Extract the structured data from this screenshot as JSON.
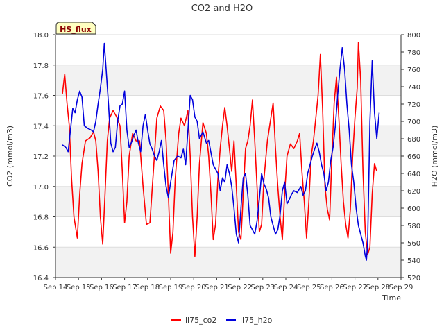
{
  "chart_data": {
    "type": "line",
    "title": "CO2 and H2O",
    "badge": "HS_flux",
    "xlabel": "Time",
    "ylabel_left": "CO2 (mmol/m3)",
    "ylabel_right": "H2O (mmol/m3)",
    "x_range": [
      0,
      15
    ],
    "y_left_range": [
      16.4,
      18.0
    ],
    "y_right_range": [
      520,
      800
    ],
    "x_ticks": [
      {
        "value": 0,
        "label": "Sep 14"
      },
      {
        "value": 1,
        "label": "Sep 15"
      },
      {
        "value": 2,
        "label": "Sep 16"
      },
      {
        "value": 3,
        "label": "Sep 17"
      },
      {
        "value": 4,
        "label": "Sep 18"
      },
      {
        "value": 5,
        "label": "Sep 19"
      },
      {
        "value": 6,
        "label": "Sep 20"
      },
      {
        "value": 7,
        "label": "Sep 21"
      },
      {
        "value": 8,
        "label": "Sep 22"
      },
      {
        "value": 9,
        "label": "Sep 23"
      },
      {
        "value": 10,
        "label": "Sep 24"
      },
      {
        "value": 11,
        "label": "Sep 25"
      },
      {
        "value": 12,
        "label": "Sep 26"
      },
      {
        "value": 13,
        "label": "Sep 27"
      },
      {
        "value": 14,
        "label": "Sep 28"
      },
      {
        "value": 15,
        "label": "Sep 29"
      }
    ],
    "y_left_ticks": [
      "16.4",
      "16.6",
      "16.8",
      "17.0",
      "17.2",
      "17.4",
      "17.6",
      "17.8",
      "18.0"
    ],
    "y_right_ticks": [
      "520",
      "540",
      "560",
      "580",
      "600",
      "620",
      "640",
      "660",
      "680",
      "700",
      "720",
      "740",
      "760",
      "780",
      "800"
    ],
    "series": [
      {
        "name": "li75_co2",
        "axis": "left",
        "color": "#ff0000",
        "points": [
          [
            0.3,
            17.61
          ],
          [
            0.4,
            17.74
          ],
          [
            0.5,
            17.55
          ],
          [
            0.6,
            17.4
          ],
          [
            0.7,
            17.05
          ],
          [
            0.8,
            16.8
          ],
          [
            0.95,
            16.66
          ],
          [
            1.05,
            16.95
          ],
          [
            1.15,
            17.15
          ],
          [
            1.3,
            17.3
          ],
          [
            1.5,
            17.32
          ],
          [
            1.65,
            17.36
          ],
          [
            1.75,
            17.3
          ],
          [
            1.85,
            17.1
          ],
          [
            1.95,
            16.8
          ],
          [
            2.05,
            16.62
          ],
          [
            2.15,
            16.95
          ],
          [
            2.25,
            17.3
          ],
          [
            2.35,
            17.45
          ],
          [
            2.5,
            17.5
          ],
          [
            2.65,
            17.46
          ],
          [
            2.8,
            17.4
          ],
          [
            2.9,
            17.1
          ],
          [
            3.0,
            16.76
          ],
          [
            3.1,
            16.9
          ],
          [
            3.2,
            17.2
          ],
          [
            3.35,
            17.35
          ],
          [
            3.5,
            17.3
          ],
          [
            3.65,
            17.3
          ],
          [
            3.8,
            17.0
          ],
          [
            3.95,
            16.75
          ],
          [
            4.1,
            16.76
          ],
          [
            4.25,
            17.1
          ],
          [
            4.4,
            17.45
          ],
          [
            4.55,
            17.53
          ],
          [
            4.7,
            17.5
          ],
          [
            4.8,
            17.3
          ],
          [
            4.9,
            16.95
          ],
          [
            5.0,
            16.56
          ],
          [
            5.1,
            16.7
          ],
          [
            5.2,
            17.05
          ],
          [
            5.35,
            17.35
          ],
          [
            5.45,
            17.45
          ],
          [
            5.6,
            17.4
          ],
          [
            5.75,
            17.5
          ],
          [
            5.85,
            17.2
          ],
          [
            5.95,
            16.8
          ],
          [
            6.05,
            16.54
          ],
          [
            6.15,
            16.8
          ],
          [
            6.25,
            17.15
          ],
          [
            6.4,
            17.42
          ],
          [
            6.55,
            17.35
          ],
          [
            6.65,
            17.2
          ],
          [
            6.75,
            16.95
          ],
          [
            6.85,
            16.65
          ],
          [
            6.95,
            16.75
          ],
          [
            7.05,
            17.05
          ],
          [
            7.15,
            17.25
          ],
          [
            7.25,
            17.4
          ],
          [
            7.35,
            17.52
          ],
          [
            7.45,
            17.4
          ],
          [
            7.55,
            17.25
          ],
          [
            7.65,
            17.1
          ],
          [
            7.75,
            17.3
          ],
          [
            7.85,
            17.0
          ],
          [
            7.95,
            16.7
          ],
          [
            8.05,
            16.65
          ],
          [
            8.15,
            16.95
          ],
          [
            8.25,
            17.25
          ],
          [
            8.35,
            17.3
          ],
          [
            8.45,
            17.4
          ],
          [
            8.55,
            17.57
          ],
          [
            8.65,
            17.3
          ],
          [
            8.75,
            17.0
          ],
          [
            8.85,
            16.7
          ],
          [
            8.95,
            16.75
          ],
          [
            9.05,
            17.05
          ],
          [
            9.2,
            17.3
          ],
          [
            9.35,
            17.45
          ],
          [
            9.45,
            17.55
          ],
          [
            9.55,
            17.25
          ],
          [
            9.65,
            17.0
          ],
          [
            9.75,
            16.8
          ],
          [
            9.85,
            16.65
          ],
          [
            9.95,
            16.95
          ],
          [
            10.05,
            17.2
          ],
          [
            10.2,
            17.28
          ],
          [
            10.35,
            17.25
          ],
          [
            10.5,
            17.3
          ],
          [
            10.6,
            17.35
          ],
          [
            10.7,
            17.1
          ],
          [
            10.8,
            16.9
          ],
          [
            10.9,
            16.66
          ],
          [
            11.0,
            16.9
          ],
          [
            11.1,
            17.2
          ],
          [
            11.2,
            17.3
          ],
          [
            11.3,
            17.45
          ],
          [
            11.4,
            17.6
          ],
          [
            11.5,
            17.87
          ],
          [
            11.6,
            17.5
          ],
          [
            11.7,
            17.0
          ],
          [
            11.8,
            16.85
          ],
          [
            11.9,
            16.78
          ],
          [
            12.0,
            17.2
          ],
          [
            12.1,
            17.55
          ],
          [
            12.2,
            17.72
          ],
          [
            12.3,
            17.45
          ],
          [
            12.4,
            17.15
          ],
          [
            12.5,
            16.9
          ],
          [
            12.6,
            16.75
          ],
          [
            12.7,
            16.66
          ],
          [
            12.8,
            16.85
          ],
          [
            12.9,
            17.2
          ],
          [
            13.0,
            17.45
          ],
          [
            13.1,
            17.65
          ],
          [
            13.15,
            17.95
          ],
          [
            13.25,
            17.7
          ],
          [
            13.35,
            17.1
          ],
          [
            13.45,
            16.7
          ],
          [
            13.55,
            16.55
          ],
          [
            13.65,
            16.6
          ],
          [
            13.75,
            16.95
          ],
          [
            13.85,
            17.15
          ],
          [
            13.95,
            17.1
          ]
        ]
      },
      {
        "name": "li75_h2o",
        "axis": "right",
        "color": "#0000dd",
        "points": [
          [
            0.3,
            673
          ],
          [
            0.45,
            670
          ],
          [
            0.55,
            665
          ],
          [
            0.65,
            690
          ],
          [
            0.75,
            715
          ],
          [
            0.85,
            710
          ],
          [
            0.95,
            725
          ],
          [
            1.05,
            735
          ],
          [
            1.15,
            728
          ],
          [
            1.25,
            695
          ],
          [
            1.4,
            692
          ],
          [
            1.55,
            690
          ],
          [
            1.65,
            688
          ],
          [
            1.75,
            700
          ],
          [
            1.85,
            720
          ],
          [
            1.95,
            738
          ],
          [
            2.05,
            760
          ],
          [
            2.12,
            790
          ],
          [
            2.2,
            760
          ],
          [
            2.3,
            720
          ],
          [
            2.4,
            675
          ],
          [
            2.5,
            665
          ],
          [
            2.6,
            670
          ],
          [
            2.7,
            700
          ],
          [
            2.8,
            718
          ],
          [
            2.9,
            720
          ],
          [
            3.0,
            735
          ],
          [
            3.1,
            690
          ],
          [
            3.2,
            670
          ],
          [
            3.3,
            676
          ],
          [
            3.4,
            684
          ],
          [
            3.5,
            690
          ],
          [
            3.6,
            675
          ],
          [
            3.7,
            665
          ],
          [
            3.8,
            695
          ],
          [
            3.9,
            708
          ],
          [
            4.0,
            690
          ],
          [
            4.1,
            674
          ],
          [
            4.2,
            668
          ],
          [
            4.3,
            660
          ],
          [
            4.4,
            655
          ],
          [
            4.5,
            665
          ],
          [
            4.6,
            678
          ],
          [
            4.7,
            650
          ],
          [
            4.8,
            625
          ],
          [
            4.9,
            612
          ],
          [
            5.0,
            630
          ],
          [
            5.15,
            655
          ],
          [
            5.3,
            660
          ],
          [
            5.45,
            658
          ],
          [
            5.55,
            668
          ],
          [
            5.65,
            650
          ],
          [
            5.75,
            690
          ],
          [
            5.85,
            730
          ],
          [
            5.95,
            725
          ],
          [
            6.05,
            705
          ],
          [
            6.15,
            700
          ],
          [
            6.25,
            680
          ],
          [
            6.4,
            688
          ],
          [
            6.55,
            675
          ],
          [
            6.65,
            678
          ],
          [
            6.75,
            664
          ],
          [
            6.85,
            650
          ],
          [
            6.95,
            645
          ],
          [
            7.05,
            640
          ],
          [
            7.15,
            620
          ],
          [
            7.25,
            635
          ],
          [
            7.35,
            630
          ],
          [
            7.45,
            650
          ],
          [
            7.55,
            640
          ],
          [
            7.65,
            625
          ],
          [
            7.75,
            600
          ],
          [
            7.85,
            570
          ],
          [
            7.95,
            560
          ],
          [
            8.05,
            600
          ],
          [
            8.15,
            635
          ],
          [
            8.25,
            640
          ],
          [
            8.35,
            615
          ],
          [
            8.45,
            580
          ],
          [
            8.55,
            575
          ],
          [
            8.65,
            570
          ],
          [
            8.75,
            585
          ],
          [
            8.85,
            610
          ],
          [
            8.95,
            640
          ],
          [
            9.05,
            628
          ],
          [
            9.15,
            622
          ],
          [
            9.25,
            612
          ],
          [
            9.35,
            590
          ],
          [
            9.45,
            580
          ],
          [
            9.55,
            570
          ],
          [
            9.65,
            575
          ],
          [
            9.75,
            592
          ],
          [
            9.85,
            620
          ],
          [
            9.95,
            630
          ],
          [
            10.05,
            605
          ],
          [
            10.15,
            610
          ],
          [
            10.25,
            616
          ],
          [
            10.35,
            620
          ],
          [
            10.5,
            618
          ],
          [
            10.65,
            625
          ],
          [
            10.75,
            615
          ],
          [
            10.85,
            620
          ],
          [
            10.95,
            640
          ],
          [
            11.05,
            650
          ],
          [
            11.15,
            660
          ],
          [
            11.25,
            668
          ],
          [
            11.35,
            675
          ],
          [
            11.45,
            665
          ],
          [
            11.55,
            650
          ],
          [
            11.65,
            640
          ],
          [
            11.75,
            620
          ],
          [
            11.85,
            630
          ],
          [
            11.95,
            655
          ],
          [
            12.05,
            670
          ],
          [
            12.15,
            695
          ],
          [
            12.25,
            730
          ],
          [
            12.35,
            760
          ],
          [
            12.45,
            785
          ],
          [
            12.55,
            760
          ],
          [
            12.65,
            720
          ],
          [
            12.75,
            690
          ],
          [
            12.85,
            650
          ],
          [
            12.95,
            630
          ],
          [
            13.05,
            600
          ],
          [
            13.15,
            580
          ],
          [
            13.25,
            570
          ],
          [
            13.35,
            560
          ],
          [
            13.45,
            545
          ],
          [
            13.5,
            540
          ],
          [
            13.55,
            560
          ],
          [
            13.65,
            700
          ],
          [
            13.75,
            770
          ],
          [
            13.85,
            710
          ],
          [
            13.95,
            680
          ],
          [
            14.05,
            710
          ]
        ]
      }
    ]
  }
}
